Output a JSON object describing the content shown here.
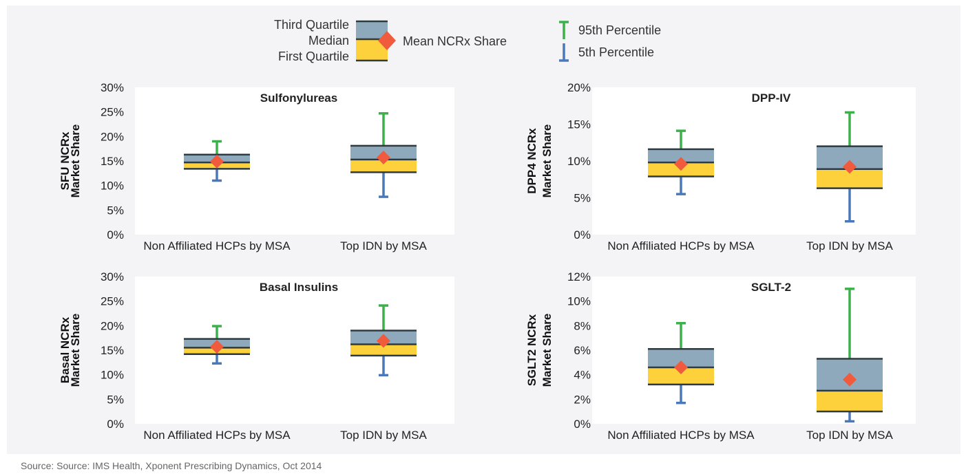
{
  "legend": {
    "third_quartile": "Third Quartile",
    "median": "Median",
    "first_quartile": "First Quartile",
    "mean": "Mean NCRx Share",
    "p95": "95th Percentile",
    "p5": "5th Percentile"
  },
  "colors": {
    "upper_box": "#8fa9bc",
    "lower_box": "#fcd13b",
    "p95": "#3cb04a",
    "p5": "#4a78b8",
    "mean": "#ef5b3c",
    "plot_bg": "#ffffff"
  },
  "chart_data": [
    {
      "type": "box",
      "title": "Sulfonylureas",
      "ylabel": [
        "SFU NCRx",
        "Market Share"
      ],
      "ylim": [
        0,
        30
      ],
      "yticks": [
        "0%",
        "5%",
        "10%",
        "15%",
        "20%",
        "25%",
        "30%"
      ],
      "categories": [
        "Non Affiliated HCPs by MSA",
        "Top IDN by MSA"
      ],
      "boxes": [
        {
          "p5": 11.0,
          "q1": 13.4,
          "median": 14.7,
          "q3": 16.3,
          "p95": 19.0,
          "mean": 14.9
        },
        {
          "p5": 7.7,
          "q1": 12.7,
          "median": 15.3,
          "q3": 18.1,
          "p95": 24.7,
          "mean": 15.7
        }
      ]
    },
    {
      "type": "box",
      "title": "DPP-IV",
      "ylabel": [
        "DPP4 NCRx",
        "Market Share"
      ],
      "ylim": [
        0,
        20
      ],
      "yticks": [
        "0%",
        "5%",
        "10%",
        "15%",
        "20%"
      ],
      "categories": [
        "Non Affiliated HCPs by MSA",
        "Top IDN by MSA"
      ],
      "boxes": [
        {
          "p5": 5.5,
          "q1": 7.9,
          "median": 9.8,
          "q3": 11.6,
          "p95": 14.1,
          "mean": 9.6
        },
        {
          "p5": 1.8,
          "q1": 6.3,
          "median": 8.9,
          "q3": 12.0,
          "p95": 16.6,
          "mean": 9.2
        }
      ]
    },
    {
      "type": "box",
      "title": "Basal Insulins",
      "ylabel": [
        "Basal NCRx",
        "Market Share"
      ],
      "ylim": [
        0,
        30
      ],
      "yticks": [
        "0%",
        "5%",
        "10%",
        "15%",
        "20%",
        "25%",
        "30%"
      ],
      "categories": [
        "Non Affiliated HCPs by MSA",
        "Top IDN by MSA"
      ],
      "boxes": [
        {
          "p5": 12.3,
          "q1": 14.2,
          "median": 15.5,
          "q3": 17.3,
          "p95": 19.9,
          "mean": 15.7
        },
        {
          "p5": 9.9,
          "q1": 13.9,
          "median": 16.2,
          "q3": 19.0,
          "p95": 24.1,
          "mean": 16.9
        }
      ]
    },
    {
      "type": "box",
      "title": "SGLT-2",
      "ylabel": [
        "SGLT2 NCRx",
        "Market Share"
      ],
      "ylim": [
        0,
        12
      ],
      "yticks": [
        "0%",
        "2%",
        "4%",
        "6%",
        "8%",
        "10%",
        "12%"
      ],
      "categories": [
        "Non Affiliated HCPs by MSA",
        "Top IDN by MSA"
      ],
      "boxes": [
        {
          "p5": 1.7,
          "q1": 3.2,
          "median": 4.6,
          "q3": 6.1,
          "p95": 8.2,
          "mean": 4.6
        },
        {
          "p5": 0.2,
          "q1": 1.0,
          "median": 2.7,
          "q3": 5.3,
          "p95": 11.0,
          "mean": 3.6
        }
      ]
    }
  ],
  "source": "Source: Source: IMS Health, Xponent Prescribing Dynamics, Oct 2014"
}
